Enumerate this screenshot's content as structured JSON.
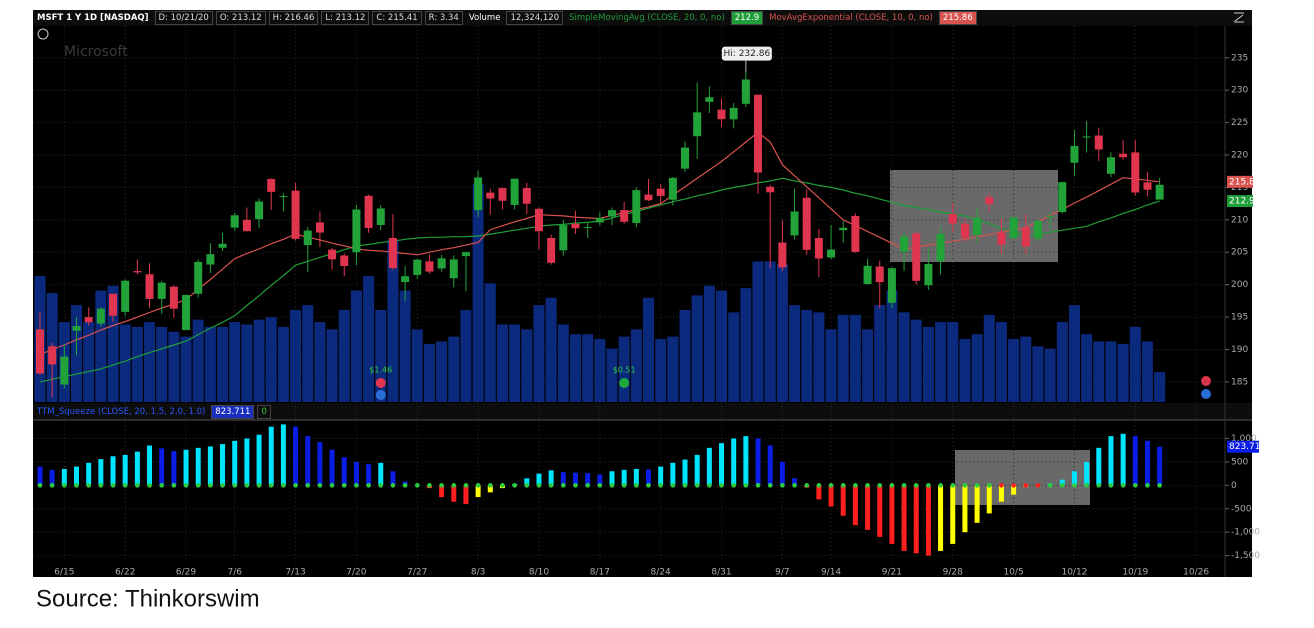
{
  "header": {
    "ticker": "MSFT 1 Y 1D [NASDAQ]",
    "items": [
      "D: 10/21/20",
      "O: 213.12",
      "H: 216.46",
      "L: 213.12",
      "C: 215.41",
      "R: 3.34"
    ],
    "volume_label": "Volume",
    "volume": "12,324,120"
  },
  "source": "Source: Thinkorswim",
  "chart_data": [
    {
      "type": "candlestick",
      "watermark": "Microsoft",
      "x": [
        "6/11",
        "6/12",
        "6/15",
        "6/16",
        "6/17",
        "6/18",
        "6/19",
        "6/22",
        "6/23",
        "6/24",
        "6/25",
        "6/26",
        "6/29",
        "6/30",
        "7/1",
        "7/2",
        "7/6",
        "7/7",
        "7/8",
        "7/9",
        "7/10",
        "7/13",
        "7/14",
        "7/15",
        "7/16",
        "7/17",
        "7/20",
        "7/21",
        "7/22",
        "7/23",
        "7/24",
        "7/27",
        "7/28",
        "7/29",
        "7/30",
        "7/31",
        "8/3",
        "8/4",
        "8/5",
        "8/6",
        "8/7",
        "8/10",
        "8/11",
        "8/12",
        "8/13",
        "8/14",
        "8/17",
        "8/18",
        "8/19",
        "8/20",
        "8/21",
        "8/24",
        "8/25",
        "8/26",
        "8/27",
        "8/28",
        "8/31",
        "9/1",
        "9/2",
        "9/3",
        "9/4",
        "9/8",
        "9/9",
        "9/10",
        "9/11",
        "9/14",
        "9/15",
        "9/16",
        "9/17",
        "9/18",
        "9/21",
        "9/22",
        "9/23",
        "9/24",
        "9/25",
        "9/28",
        "9/29",
        "9/30",
        "10/1",
        "10/2",
        "10/5",
        "10/6",
        "10/7",
        "10/8",
        "10/9",
        "10/12",
        "10/13",
        "10/14",
        "10/15",
        "10/16",
        "10/19",
        "10/20",
        "10/21"
      ],
      "open": [
        193.1,
        190.5,
        184.6,
        192.9,
        195.0,
        194.0,
        198.6,
        195.8,
        202.1,
        201.6,
        197.8,
        199.7,
        193.0,
        198.6,
        203.1,
        205.7,
        208.8,
        210.0,
        210.1,
        216.3,
        213.6,
        214.5,
        206.1,
        209.6,
        205.4,
        204.5,
        205.0,
        213.7,
        209.2,
        207.2,
        200.4,
        201.5,
        203.6,
        202.5,
        201.0,
        204.4,
        211.5,
        214.2,
        214.9,
        212.3,
        214.9,
        211.7,
        207.2,
        205.3,
        209.4,
        208.8,
        209.6,
        210.5,
        211.5,
        209.5,
        213.9,
        214.8,
        213.1,
        217.9,
        222.9,
        228.2,
        227.0,
        225.5,
        227.9,
        229.3,
        215.1,
        206.5,
        207.6,
        213.4,
        207.2,
        204.2,
        208.4,
        210.6,
        200.1,
        202.8,
        197.2,
        205.1,
        207.9,
        199.9,
        203.6,
        210.9,
        209.4,
        207.7,
        213.5,
        208.0,
        207.2,
        208.8,
        207.1,
        210.5,
        211.2,
        218.8,
        222.7,
        223.0,
        217.1,
        220.2,
        220.4,
        215.8,
        213.12
      ],
      "high": [
        195.8,
        191.0,
        190.8,
        195.0,
        196.5,
        196.5,
        198.6,
        200.8,
        203.9,
        203.3,
        200.6,
        199.9,
        198.5,
        203.9,
        206.4,
        208.0,
        211.1,
        211.9,
        213.3,
        216.4,
        214.1,
        215.7,
        208.9,
        211.3,
        205.7,
        204.8,
        212.3,
        213.9,
        212.3,
        210.9,
        202.9,
        203.97,
        204.7,
        204.6,
        204.5,
        205.1,
        217.6,
        214.8,
        215.0,
        216.4,
        215.7,
        211.9,
        207.7,
        210.0,
        211.4,
        209.6,
        211.2,
        211.9,
        212.8,
        215.0,
        216.3,
        215.5,
        216.6,
        222.1,
        231.2,
        230.6,
        228.7,
        228.0,
        232.86,
        229.3,
        215.4,
        210.0,
        214.8,
        214.7,
        208.6,
        209.2,
        209.8,
        211.0,
        204.0,
        203.7,
        202.7,
        208.1,
        208.1,
        205.6,
        209.0,
        212.6,
        210.1,
        211.98,
        213.99,
        210.2,
        210.4,
        210.99,
        210.1,
        211.2,
        215.9,
        223.9,
        225.2,
        224.2,
        220.4,
        222.3,
        222.3,
        217.4,
        216.46
      ],
      "low": [
        186.1,
        182.6,
        184.0,
        189.1,
        193.7,
        193.5,
        194.3,
        195.2,
        201.6,
        196.4,
        195.5,
        194.9,
        193.0,
        198.0,
        201.8,
        205.2,
        208.3,
        208.2,
        208.7,
        211.5,
        211.3,
        206.8,
        202.0,
        205.8,
        202.3,
        201.3,
        203.0,
        208.0,
        208.4,
        202.3,
        197.5,
        200.9,
        201.7,
        202.0,
        199.6,
        199.0,
        210.4,
        210.8,
        211.6,
        211.6,
        210.9,
        205.4,
        203.1,
        204.5,
        207.8,
        207.2,
        209.1,
        209.2,
        209.4,
        208.9,
        212.9,
        212.4,
        212.2,
        217.4,
        219.4,
        226.5,
        224.3,
        224.1,
        227.4,
        214.0,
        202.6,
        202.1,
        207.0,
        204.6,
        201.2,
        203.9,
        206.5,
        204.9,
        200.0,
        196.3,
        196.4,
        202.1,
        200.0,
        199.2,
        201.6,
        208.1,
        206.7,
        206.5,
        211.3,
        204.8,
        206.98,
        204.8,
        206.7,
        208.5,
        211.0,
        216.7,
        220.4,
        219.1,
        216.6,
        219.3,
        213.7,
        213.6,
        213.12
      ],
      "close": [
        186.3,
        187.7,
        188.9,
        193.6,
        194.2,
        196.3,
        195.2,
        200.6,
        201.9,
        197.8,
        200.3,
        196.3,
        198.4,
        203.5,
        204.7,
        206.3,
        210.7,
        208.25,
        212.83,
        214.32,
        213.67,
        207.07,
        208.35,
        208.04,
        203.92,
        202.88,
        211.6,
        208.75,
        211.75,
        202.54,
        201.3,
        203.85,
        202.02,
        204.06,
        203.9,
        205.01,
        216.54,
        213.29,
        212.94,
        216.35,
        212.48,
        208.25,
        203.38,
        209.19,
        208.7,
        208.9,
        210.28,
        211.49,
        209.7,
        214.58,
        213.02,
        213.69,
        216.47,
        221.15,
        226.58,
        228.91,
        225.53,
        227.27,
        231.65,
        217.3,
        214.25,
        202.66,
        211.29,
        205.37,
        204.03,
        205.41,
        208.78,
        205.05,
        202.91,
        200.39,
        202.54,
        207.42,
        200.59,
        203.19,
        207.82,
        209.44,
        207.26,
        210.33,
        212.46,
        206.19,
        210.38,
        205.91,
        209.83,
        210.58,
        215.81,
        221.4,
        222.86,
        220.86,
        219.66,
        219.66,
        214.22,
        214.65,
        215.41
      ],
      "volume": [
        52000000,
        45000000,
        33000000,
        40000000,
        33000000,
        46000000,
        48000000,
        32000000,
        31000000,
        33000000,
        31000000,
        29000000,
        27000000,
        34000000,
        31000000,
        31000000,
        33000000,
        32000000,
        34000000,
        35000000,
        31000000,
        38000000,
        40000000,
        33000000,
        30000000,
        38000000,
        46000000,
        52000000,
        38000000,
        67000000,
        46000000,
        30000000,
        24000000,
        25000000,
        27000000,
        38000000,
        90000000,
        49000000,
        32000000,
        32000000,
        30000000,
        40000000,
        43000000,
        32000000,
        28000000,
        28000000,
        26000000,
        22000000,
        27000000,
        30000000,
        43000000,
        26000000,
        27000000,
        38000000,
        44000000,
        48000000,
        46000000,
        37000000,
        47000000,
        58000000,
        58000000,
        57000000,
        40000000,
        38000000,
        37000000,
        30000000,
        36000000,
        36000000,
        30000000,
        40000000,
        46000000,
        37000000,
        34000000,
        31000000,
        33000000,
        33000000,
        26000000,
        28000000,
        36000000,
        33000000,
        26000000,
        27000000,
        23000000,
        22000000,
        33000000,
        40000000,
        28000000,
        25000000,
        25000000,
        24000000,
        31000000,
        25000000,
        12324120
      ],
      "up_color": "#22a33a",
      "down_color": "#e0354f",
      "volume_color": "#0b2a7e",
      "series": [
        {
          "name": "SimpleMovingAvg (CLOSE, 20, 0, no)",
          "color": "#1f9e3a",
          "value_label": "212.9",
          "values": [
            185.0,
            185.4,
            185.8,
            186.2,
            186.6,
            187.0,
            187.6,
            188.2,
            188.9,
            189.5,
            190.1,
            190.7,
            191.3,
            192.3,
            193.3,
            194.2,
            195.2,
            196.8,
            198.3,
            199.9,
            201.4,
            203.0,
            203.6,
            204.2,
            204.8,
            205.4,
            206.0,
            206.2,
            206.5,
            206.7,
            207.0,
            207.2,
            207.3,
            207.3,
            207.4,
            207.4,
            207.5,
            207.8,
            208.1,
            208.4,
            208.7,
            209.0,
            209.2,
            209.3,
            209.5,
            209.6,
            209.8,
            210.3,
            210.8,
            211.3,
            211.8,
            212.3,
            212.8,
            213.2,
            213.7,
            214.1,
            214.6,
            215.0,
            215.3,
            215.7,
            216.0,
            216.4,
            216.0,
            215.7,
            215.3,
            215.0,
            214.6,
            214.1,
            213.7,
            213.2,
            212.7,
            212.2,
            211.9,
            211.6,
            211.2,
            210.9,
            210.6,
            210.0,
            209.4,
            208.7,
            208.1,
            207.5,
            207.8,
            208.1,
            208.4,
            208.7,
            209.0,
            209.7,
            210.3,
            211.0,
            211.6,
            212.3,
            212.9
          ]
        },
        {
          "name": "MovAvgExponential (CLOSE, 10, 0, no)",
          "color": "#d9534f",
          "value_label": "215.86",
          "values": [
            189.2,
            190.0,
            190.7,
            191.5,
            192.2,
            193.0,
            193.7,
            194.3,
            195.0,
            195.7,
            196.4,
            197.0,
            197.7,
            199.3,
            200.8,
            202.4,
            204.0,
            204.8,
            205.5,
            206.3,
            207.0,
            207.8,
            207.3,
            206.9,
            206.4,
            206.0,
            205.5,
            205.3,
            205.2,
            205.0,
            204.8,
            204.6,
            205.0,
            205.4,
            205.7,
            206.1,
            206.5,
            208.5,
            209.1,
            209.7,
            210.2,
            210.8,
            210.7,
            210.6,
            210.4,
            210.3,
            210.2,
            210.7,
            211.1,
            211.6,
            212.0,
            212.5,
            213.8,
            215.1,
            216.4,
            217.7,
            219.0,
            220.5,
            222.0,
            223.5,
            222.0,
            218.5,
            216.8,
            215.1,
            213.4,
            211.7,
            210.0,
            209.1,
            208.2,
            207.3,
            206.4,
            205.5,
            205.8,
            206.1,
            206.4,
            206.7,
            207.0,
            207.4,
            207.7,
            208.1,
            208.4,
            208.8,
            209.7,
            210.7,
            211.6,
            212.6,
            213.5,
            214.5,
            215.5,
            216.5,
            216.3,
            216.1,
            215.86
          ]
        }
      ],
      "annotation": {
        "date": "9/2",
        "text": "Hi: 232.86"
      },
      "events": [
        {
          "date": "7/22",
          "label": "$1.46"
        },
        {
          "date": "8/19",
          "label": "$0.51"
        }
      ],
      "ylim": [
        181.9,
        239.9
      ],
      "yticks": [
        185,
        190,
        195,
        200,
        205,
        210,
        215,
        220,
        225,
        230,
        235
      ],
      "grid": true
    },
    {
      "type": "histogram",
      "title": "TTM_Squeeze (CLOSE, 20, 1.5, 2.0, 1.0)",
      "value_label": "823.711",
      "count_label": "0",
      "values": [
        400,
        330,
        350,
        400,
        480,
        560,
        620,
        650,
        720,
        850,
        790,
        730,
        760,
        800,
        830,
        880,
        950,
        1000,
        1080,
        1250,
        1300,
        1250,
        1050,
        920,
        760,
        600,
        500,
        450,
        480,
        300,
        80,
        20,
        -60,
        -250,
        -350,
        -400,
        -250,
        -150,
        -60,
        30,
        150,
        250,
        320,
        280,
        270,
        260,
        230,
        300,
        330,
        350,
        340,
        400,
        480,
        550,
        650,
        800,
        900,
        1000,
        1050,
        1000,
        850,
        500,
        150,
        -50,
        -300,
        -450,
        -650,
        -850,
        -950,
        -1100,
        -1250,
        -1400,
        -1450,
        -1500,
        -1400,
        -1250,
        -1000,
        -800,
        -600,
        -350,
        -200,
        -30,
        -10,
        40,
        120,
        300,
        500,
        800,
        1050,
        1100,
        1050,
        950,
        823.711
      ],
      "squeeze": [
        0,
        0,
        0,
        0,
        0,
        0,
        0,
        0,
        0,
        0,
        0,
        0,
        0,
        0,
        0,
        0,
        0,
        0,
        0,
        0,
        0,
        0,
        0,
        0,
        0,
        0,
        0,
        0,
        0,
        0,
        0,
        0,
        0,
        0,
        0,
        0,
        0,
        0,
        0,
        0,
        0,
        0,
        0,
        0,
        0,
        0,
        0,
        0,
        0,
        0,
        0,
        0,
        0,
        0,
        0,
        0,
        0,
        0,
        0,
        0,
        0,
        0,
        0,
        0,
        0,
        0,
        0,
        0,
        0,
        0,
        0,
        0,
        0,
        0,
        0,
        0,
        0,
        0,
        0,
        1,
        1,
        1,
        1,
        0,
        0,
        0,
        0,
        0,
        0,
        0,
        0,
        0,
        0
      ],
      "colors": {
        "pos_up": "#00e5ff",
        "pos_down": "#0a1ee6",
        "neg_down": "#ff1f1f",
        "neg_up": "#ffff00"
      },
      "dot_colors": {
        "off": "#2ecc40",
        "on": "#ff2020"
      },
      "ylim": [
        -1700,
        1330
      ],
      "yticks": [
        {
          "value": -1500,
          "label": "-1,500"
        },
        {
          "value": -1000,
          "label": "-1,000"
        },
        -500,
        0,
        500,
        {
          "value": 1000,
          "label": "1,000"
        }
      ],
      "xticks": [
        "6/15",
        "6/22",
        "6/29",
        "7/6",
        "7/13",
        "7/20",
        "7/27",
        "8/3",
        "8/10",
        "8/17",
        "8/24",
        "8/31",
        "9/7",
        "9/14",
        "9/21",
        "9/28",
        "10/5",
        "10/12",
        "10/19",
        "10/26"
      ],
      "grid": true
    }
  ]
}
